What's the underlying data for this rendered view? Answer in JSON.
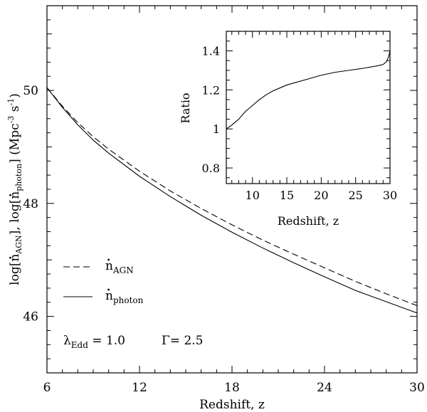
{
  "chart_data": [
    {
      "type": "line",
      "xlabel": "Redshift, z",
      "ylabel_parts": {
        "prefix": "log[",
        "n1_sub": "AGN",
        "middle": "], log[",
        "n2_sub": "photon",
        "suffix": "] (Mpc",
        "exp1": "-3",
        "s": " s",
        "exp2": "-1",
        "close": ")"
      },
      "xlim": [
        6,
        30
      ],
      "ylim": [
        45,
        51.5
      ],
      "xticks": [
        6,
        12,
        18,
        24,
        30
      ],
      "xtick_labels": [
        "6",
        "12",
        "18",
        "24",
        "30"
      ],
      "yticks": [
        46,
        48,
        50
      ],
      "ytick_labels": [
        "46",
        "48",
        "50"
      ],
      "series": [
        {
          "name": "AGN",
          "style": "dashed",
          "x": [
            6,
            7,
            8,
            9,
            10,
            12,
            14,
            16,
            18,
            20,
            22,
            24,
            26,
            28,
            30
          ],
          "y": [
            50.05,
            49.72,
            49.43,
            49.18,
            48.96,
            48.57,
            48.22,
            47.91,
            47.62,
            47.35,
            47.1,
            46.86,
            46.62,
            46.4,
            46.19
          ]
        },
        {
          "name": "photon",
          "style": "solid",
          "x": [
            6,
            7,
            8,
            9,
            10,
            12,
            14,
            16,
            18,
            20,
            22,
            24,
            26,
            28,
            30
          ],
          "y": [
            50.05,
            49.7,
            49.39,
            49.12,
            48.89,
            48.48,
            48.12,
            47.79,
            47.49,
            47.21,
            46.95,
            46.7,
            46.46,
            46.26,
            46.06
          ]
        }
      ],
      "legend": [
        {
          "symbol": "n",
          "sub": "AGN",
          "style": "dashed"
        },
        {
          "symbol": "n",
          "sub": "photon",
          "style": "solid"
        }
      ],
      "legend_placement": "lower-left",
      "annotation": {
        "lambda_sym": "λ",
        "lambda_sub": "Edd",
        "lambda_val": " = 1.0",
        "gamma_text": "Γ= 2.5"
      }
    },
    {
      "type": "line",
      "placement": "inset-top-right",
      "xlabel": "Redshift, z",
      "ylabel": "Ratio",
      "xlim": [
        6.2,
        30
      ],
      "ylim": [
        0.72,
        1.5
      ],
      "xticks": [
        10,
        15,
        20,
        25,
        30
      ],
      "xtick_labels": [
        "10",
        "15",
        "20",
        "25",
        "30"
      ],
      "yticks": [
        0.8,
        1.0,
        1.2,
        1.4
      ],
      "ytick_labels": [
        "0.8",
        "1",
        "1.2",
        "1.4"
      ],
      "series": [
        {
          "style": "solid",
          "x": [
            6.2,
            7,
            8,
            9,
            10,
            11,
            12,
            13,
            14,
            15,
            16,
            18,
            20,
            22,
            24,
            26,
            28,
            29,
            29.5,
            29.8,
            30
          ],
          "y": [
            1.0,
            1.02,
            1.05,
            1.09,
            1.12,
            1.15,
            1.175,
            1.195,
            1.21,
            1.225,
            1.235,
            1.255,
            1.275,
            1.29,
            1.3,
            1.31,
            1.322,
            1.33,
            1.345,
            1.37,
            1.4
          ]
        }
      ]
    }
  ]
}
